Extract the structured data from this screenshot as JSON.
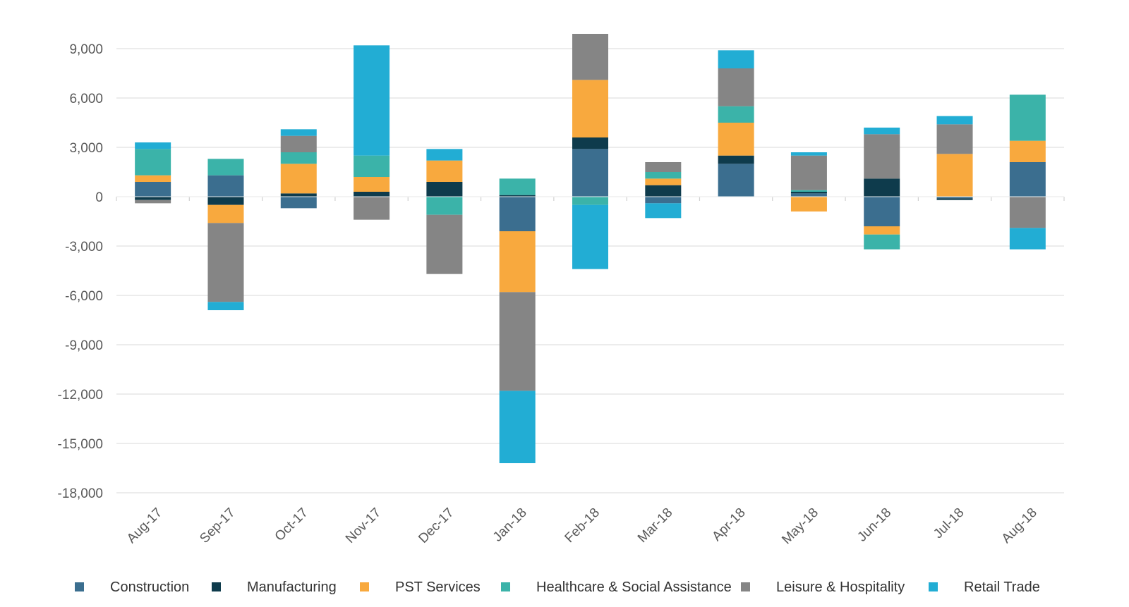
{
  "chart_data": {
    "type": "bar",
    "stacked": true,
    "title": "",
    "xlabel": "",
    "ylabel": "",
    "categories": [
      "Aug-17",
      "Sep-17",
      "Oct-17",
      "Nov-17",
      "Dec-17",
      "Jan-18",
      "Feb-18",
      "Mar-18",
      "Apr-18",
      "May-18",
      "Jun-18",
      "Jul-18",
      "Aug-18"
    ],
    "ylim": [
      -18000,
      9000
    ],
    "yticks": [
      9000,
      6000,
      3000,
      0,
      -3000,
      -6000,
      -9000,
      -12000,
      -15000,
      -18000
    ],
    "ytick_labels": [
      "9,000",
      "6,000",
      "3,000",
      "0",
      "-3,000",
      "-6,000",
      "-9,000",
      "-12,000",
      "-15,000",
      "-18,000"
    ],
    "grid": true,
    "legend_position": "bottom",
    "series": [
      {
        "name": "Construction",
        "color": "#3B6E8F",
        "values": [
          900,
          1300,
          -700,
          0,
          0,
          -2100,
          2900,
          -400,
          2000,
          200,
          -1800,
          -100,
          2100
        ]
      },
      {
        "name": "Manufacturing",
        "color": "#0E3B4C",
        "values": [
          -200,
          -500,
          200,
          300,
          900,
          100,
          700,
          700,
          500,
          100,
          1100,
          -100,
          0
        ]
      },
      {
        "name": "PST Services",
        "color": "#F8A93E",
        "values": [
          400,
          -1100,
          1800,
          900,
          1300,
          -3700,
          3500,
          400,
          2000,
          -900,
          -500,
          2600,
          1300
        ]
      },
      {
        "name": "Healthcare & Social Assistance",
        "color": "#3BB3A9",
        "values": [
          1600,
          1000,
          700,
          1300,
          -1100,
          1000,
          -500,
          400,
          1000,
          100,
          -900,
          0,
          2800
        ]
      },
      {
        "name": "Leisure & Hospitality",
        "color": "#858585",
        "values": [
          -200,
          -4800,
          1000,
          -1400,
          -3600,
          -6000,
          2800,
          600,
          2300,
          2100,
          2700,
          1800,
          -1900
        ]
      },
      {
        "name": "Retail Trade",
        "color": "#22ADD4",
        "values": [
          400,
          -500,
          400,
          6700,
          700,
          -4400,
          -3900,
          -900,
          1100,
          200,
          400,
          500,
          -1300
        ]
      }
    ]
  }
}
